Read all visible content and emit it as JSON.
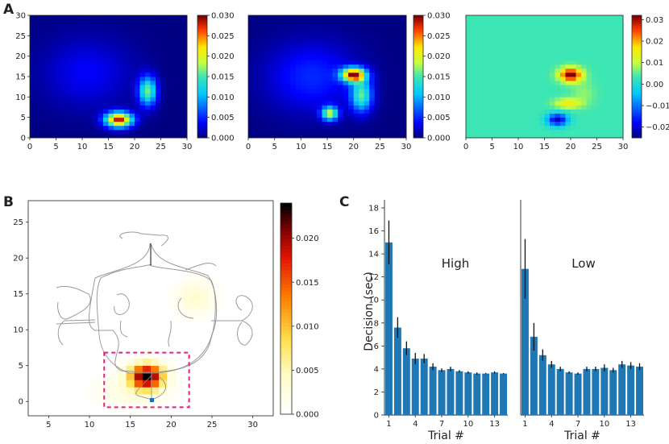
{
  "panel_labels": [
    "A",
    "B",
    "C"
  ],
  "colors": {
    "bar": "#1f77b4",
    "error": "#111111",
    "highlight_box": "#e8207f",
    "path": "#8a8a8a",
    "marker": "#1f6fb0"
  },
  "chart_data": [
    {
      "id": "A1",
      "type": "heatmap",
      "title": "",
      "xlim": [
        0,
        30
      ],
      "ylim": [
        0,
        30
      ],
      "xticks": [
        "0",
        "5",
        "10",
        "15",
        "20",
        "25",
        "30"
      ],
      "yticks": [
        "0",
        "5",
        "10",
        "15",
        "20",
        "25",
        "30"
      ],
      "colormap": "jet",
      "colorbar_range": [
        0.0,
        0.03
      ],
      "colorbar_ticks": [
        "0.000",
        "0.005",
        "0.010",
        "0.015",
        "0.020",
        "0.025",
        "0.030"
      ],
      "blobs": [
        {
          "x": 17,
          "y": 4.5,
          "peak": 0.029,
          "sx": 1.8,
          "sy": 1.3
        },
        {
          "x": 22.5,
          "y": 11.5,
          "peak": 0.016,
          "sx": 1.2,
          "sy": 2.5
        },
        {
          "x": 11,
          "y": 16,
          "peak": 0.0035,
          "sx": 6,
          "sy": 6
        }
      ]
    },
    {
      "id": "A2",
      "type": "heatmap",
      "xlim": [
        0,
        30
      ],
      "ylim": [
        0,
        30
      ],
      "xticks": [
        "0",
        "5",
        "10",
        "15",
        "20",
        "25",
        "30"
      ],
      "yticks": [],
      "colormap": "jet",
      "colorbar_range": [
        0.0,
        0.03
      ],
      "colorbar_ticks": [
        "0.000",
        "0.005",
        "0.010",
        "0.015",
        "0.020",
        "0.025",
        "0.030"
      ],
      "blobs": [
        {
          "x": 20,
          "y": 15.5,
          "peak": 0.029,
          "sx": 1.6,
          "sy": 1.2
        },
        {
          "x": 21.5,
          "y": 10.5,
          "peak": 0.015,
          "sx": 1.4,
          "sy": 2.8
        },
        {
          "x": 15.5,
          "y": 6,
          "peak": 0.018,
          "sx": 1.1,
          "sy": 1.2
        },
        {
          "x": 12,
          "y": 15,
          "peak": 0.005,
          "sx": 6,
          "sy": 6
        }
      ]
    },
    {
      "id": "A3",
      "type": "heatmap",
      "xlim": [
        0,
        30
      ],
      "ylim": [
        0,
        30
      ],
      "xticks": [
        "0",
        "5",
        "10",
        "15",
        "20",
        "25",
        "30"
      ],
      "yticks": [],
      "colormap": "jet-diverging",
      "colorbar_range": [
        -0.025,
        0.032
      ],
      "colorbar_ticks": [
        "0.03",
        "0.02",
        "0.01",
        "0.00",
        "−0.01",
        "−0.02"
      ],
      "blobs": [
        {
          "x": 20,
          "y": 15.5,
          "peak": 0.03,
          "sx": 1.5,
          "sy": 1.2
        },
        {
          "x": 17.5,
          "y": 4.5,
          "peak": -0.025,
          "sx": 1.4,
          "sy": 1.1
        },
        {
          "x": 19.5,
          "y": 8.5,
          "peak": 0.012,
          "sx": 1.8,
          "sy": 0.9
        },
        {
          "x": 22.5,
          "y": 11,
          "peak": 0.004,
          "sx": 1.5,
          "sy": 2
        }
      ]
    },
    {
      "id": "B",
      "type": "heatmap",
      "xlim": [
        2.5,
        32.5
      ],
      "ylim": [
        -2,
        28
      ],
      "xticks": [
        "5",
        "10",
        "15",
        "20",
        "25",
        "30"
      ],
      "yticks": [
        "0",
        "5",
        "10",
        "15",
        "20",
        "25"
      ],
      "colormap": "hot-reversed",
      "colorbar_range": [
        0.0,
        0.024
      ],
      "colorbar_ticks": [
        "0.000",
        "0.005",
        "0.010",
        "0.015",
        "0.020"
      ],
      "blobs": [
        {
          "x": 17,
          "y": 3.5,
          "peak": 0.024,
          "sx": 1.4,
          "sy": 1.2
        },
        {
          "x": 23,
          "y": 14.5,
          "peak": 0.004,
          "sx": 1.6,
          "sy": 1.6
        },
        {
          "x": 15,
          "y": 1.5,
          "peak": 0.0025,
          "sx": 3,
          "sy": 1.6
        }
      ],
      "highlight_box": {
        "x0": 11.8,
        "x1": 22.2,
        "y0": -0.8,
        "y1": 6.8
      }
    },
    {
      "id": "C",
      "type": "bar",
      "ylabel": "Decision (sec)",
      "xlabel": "Trial #",
      "ylim": [
        0,
        18
      ],
      "yticks": [
        "0",
        "2",
        "4",
        "6",
        "8",
        "10",
        "12",
        "14",
        "16",
        "18"
      ],
      "xticks": [
        "1",
        "4",
        "7",
        "10",
        "13"
      ],
      "categories": [
        1,
        2,
        3,
        4,
        5,
        6,
        7,
        8,
        9,
        10,
        11,
        12,
        13,
        14
      ],
      "series": [
        {
          "name": "High",
          "values": [
            15.0,
            7.6,
            5.8,
            4.9,
            4.9,
            4.2,
            3.9,
            4.0,
            3.8,
            3.7,
            3.6,
            3.6,
            3.7,
            3.6
          ],
          "errors": [
            1.9,
            0.9,
            0.6,
            0.5,
            0.4,
            0.3,
            0.15,
            0.2,
            0.1,
            0.1,
            0.1,
            0.05,
            0.1,
            0.05
          ]
        },
        {
          "name": "Low",
          "values": [
            12.7,
            6.8,
            5.2,
            4.4,
            4.0,
            3.7,
            3.6,
            4.0,
            4.0,
            4.1,
            3.9,
            4.4,
            4.3,
            4.2
          ],
          "errors": [
            2.6,
            1.2,
            0.5,
            0.3,
            0.2,
            0.1,
            0.1,
            0.2,
            0.2,
            0.3,
            0.2,
            0.3,
            0.3,
            0.3
          ]
        }
      ]
    }
  ]
}
